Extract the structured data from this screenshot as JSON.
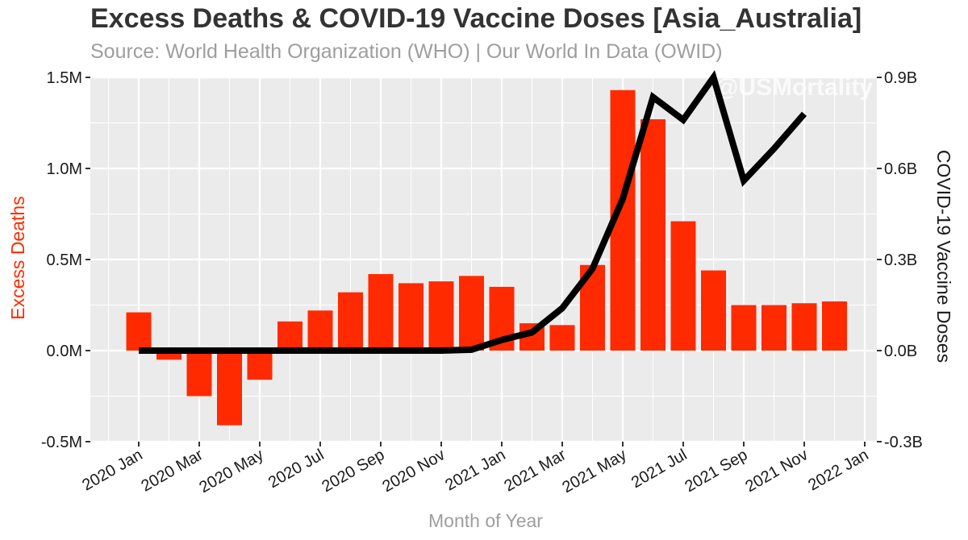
{
  "chart_data": {
    "type": "bar",
    "title": "Excess Deaths & COVID-19 Vaccine Doses [Asia_Australia]",
    "subtitle": "Source: World Health Organization (WHO) | Our World In Data (OWID)",
    "watermark": "@USMortality",
    "xlabel": "Month of Year",
    "ylabel": "Excess Deaths",
    "y2label": "COVID-19 Vaccine Doses",
    "ylim": [
      -0.5,
      1.5
    ],
    "y2lim": [
      -0.3,
      0.9
    ],
    "y_ticks": [
      {
        "value": -0.5,
        "label": "-0.5M"
      },
      {
        "value": 0.0,
        "label": "0.0M"
      },
      {
        "value": 0.5,
        "label": "0.5M"
      },
      {
        "value": 1.0,
        "label": "1.0M"
      },
      {
        "value": 1.5,
        "label": "1.5M"
      }
    ],
    "y2_ticks": [
      {
        "value": -0.3,
        "label": "-0.3B"
      },
      {
        "value": 0.0,
        "label": "0.0B"
      },
      {
        "value": 0.3,
        "label": "0.3B"
      },
      {
        "value": 0.6,
        "label": "0.6B"
      },
      {
        "value": 0.9,
        "label": "0.9B"
      }
    ],
    "x_ticks": [
      "2020 Jan",
      "2020 Mar",
      "2020 May",
      "2020 Jul",
      "2020 Sep",
      "2020 Nov",
      "2021 Jan",
      "2021 Mar",
      "2021 May",
      "2021 Jul",
      "2021 Sep",
      "2021 Nov",
      "2022 Jan"
    ],
    "categories": [
      "2020-01",
      "2020-02",
      "2020-03",
      "2020-04",
      "2020-05",
      "2020-06",
      "2020-07",
      "2020-08",
      "2020-09",
      "2020-10",
      "2020-11",
      "2020-12",
      "2021-01",
      "2021-02",
      "2021-03",
      "2021-04",
      "2021-05",
      "2021-06",
      "2021-07",
      "2021-08",
      "2021-09",
      "2021-10",
      "2021-11",
      "2021-12"
    ],
    "series": [
      {
        "name": "Excess Deaths",
        "type": "bar",
        "unit": "M",
        "color": "#ff2a00",
        "values": [
          0.21,
          -0.05,
          -0.25,
          -0.41,
          -0.16,
          0.16,
          0.22,
          0.32,
          0.42,
          0.37,
          0.38,
          0.41,
          0.35,
          0.15,
          0.14,
          0.47,
          1.43,
          1.27,
          0.71,
          0.44,
          0.25,
          0.25,
          0.26,
          0.27
        ]
      },
      {
        "name": "COVID-19 Vaccine Doses",
        "type": "line",
        "unit": "B",
        "axis": "secondary",
        "color": "#000000",
        "values": [
          0.0,
          0.0,
          0.0,
          0.0,
          0.0,
          0.0,
          0.0,
          0.0,
          0.0,
          0.0,
          0.0,
          0.003,
          0.035,
          0.06,
          0.14,
          0.27,
          0.5,
          0.835,
          0.76,
          0.9,
          0.56,
          0.665,
          0.78,
          null
        ]
      }
    ],
    "grid": true,
    "legend": "none",
    "colors": {
      "panel": "#ebebeb",
      "grid": "#ffffff",
      "bar": "#ff2a00",
      "line": "#000000",
      "ylabel": "#ff2a00",
      "xlabel": "#9e9e9e",
      "y2label": "#1a1a1a"
    }
  }
}
